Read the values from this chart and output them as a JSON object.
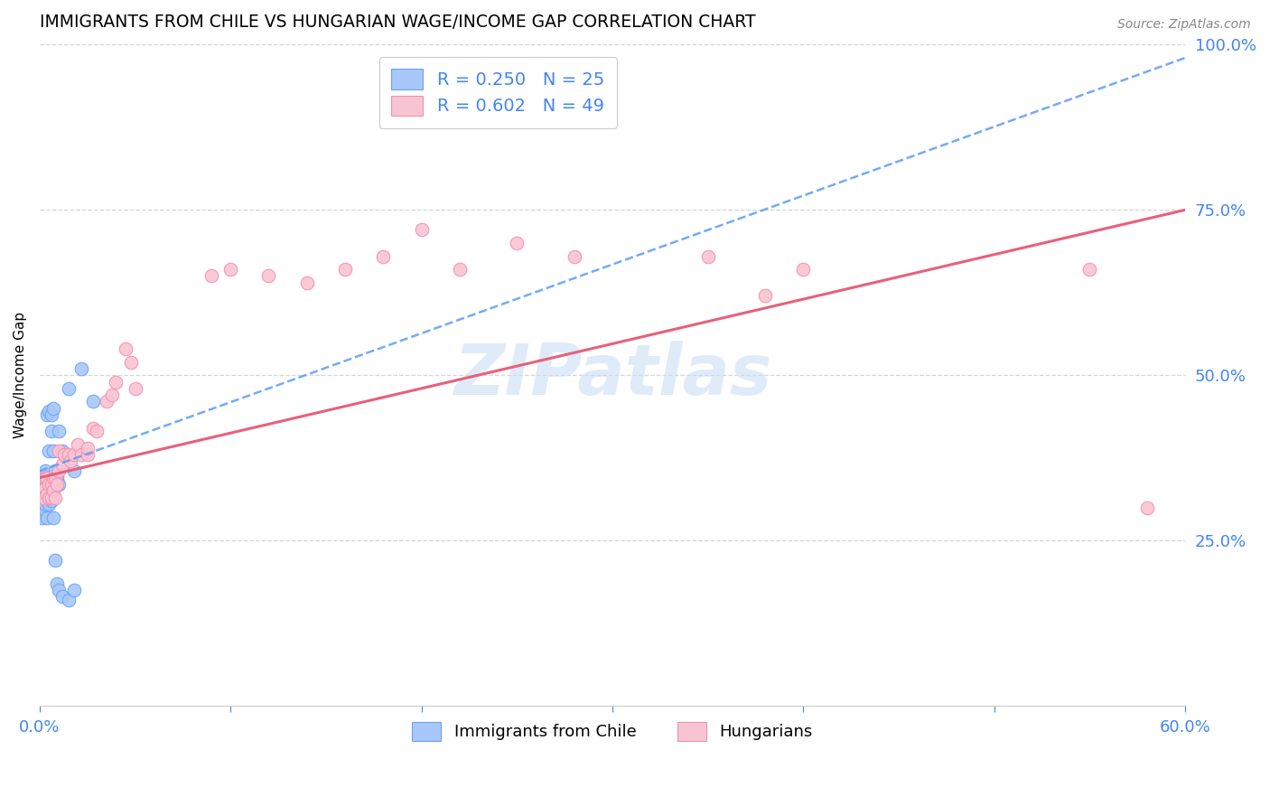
{
  "title": "IMMIGRANTS FROM CHILE VS HUNGARIAN WAGE/INCOME GAP CORRELATION CHART",
  "source": "Source: ZipAtlas.com",
  "ylabel": "Wage/Income Gap",
  "xlim": [
    0.0,
    0.6
  ],
  "ylim": [
    0.0,
    1.0
  ],
  "ytick_right_labels": [
    "25.0%",
    "50.0%",
    "75.0%",
    "100.0%"
  ],
  "ytick_right_vals": [
    0.25,
    0.5,
    0.75,
    1.0
  ],
  "legend_r1": "R = 0.250   N = 25",
  "legend_r2": "R = 0.602   N = 49",
  "watermark": "ZIPatlas",
  "color_chile": "#a8c8fa",
  "color_chile_edge": "#6aa3f5",
  "color_chile_line": "#5b9cf6",
  "color_hungary": "#f9c4d2",
  "color_hungary_edge": "#f48fb1",
  "color_hungary_line": "#e8607a",
  "chile_x": [
    0.001,
    0.002,
    0.002,
    0.003,
    0.003,
    0.003,
    0.004,
    0.004,
    0.004,
    0.005,
    0.005,
    0.005,
    0.006,
    0.006,
    0.007,
    0.007,
    0.008,
    0.009,
    0.01,
    0.01,
    0.012,
    0.015,
    0.018,
    0.022,
    0.028
  ],
  "chile_y": [
    0.335,
    0.325,
    0.345,
    0.33,
    0.34,
    0.355,
    0.335,
    0.345,
    0.44,
    0.345,
    0.445,
    0.385,
    0.44,
    0.415,
    0.45,
    0.385,
    0.355,
    0.345,
    0.335,
    0.415,
    0.385,
    0.48,
    0.355,
    0.51,
    0.46
  ],
  "chile_low_x": [
    0.001,
    0.002,
    0.002,
    0.003,
    0.003,
    0.004,
    0.004,
    0.005,
    0.006,
    0.007,
    0.008,
    0.009,
    0.01,
    0.012,
    0.015,
    0.018
  ],
  "chile_low_y": [
    0.285,
    0.305,
    0.315,
    0.295,
    0.305,
    0.31,
    0.285,
    0.305,
    0.31,
    0.285,
    0.22,
    0.185,
    0.175,
    0.165,
    0.16,
    0.175
  ],
  "hungary_x": [
    0.001,
    0.002,
    0.003,
    0.003,
    0.004,
    0.004,
    0.005,
    0.005,
    0.006,
    0.006,
    0.007,
    0.007,
    0.008,
    0.008,
    0.009,
    0.01,
    0.01,
    0.012,
    0.013,
    0.015,
    0.016,
    0.018,
    0.02,
    0.022,
    0.025,
    0.025,
    0.028,
    0.03,
    0.035,
    0.038,
    0.04,
    0.045,
    0.048,
    0.05,
    0.09,
    0.1,
    0.12,
    0.14,
    0.16,
    0.18,
    0.2,
    0.22,
    0.25,
    0.28,
    0.35,
    0.38,
    0.4,
    0.55,
    0.58
  ],
  "hungary_y": [
    0.325,
    0.315,
    0.33,
    0.345,
    0.32,
    0.345,
    0.315,
    0.335,
    0.315,
    0.335,
    0.325,
    0.345,
    0.315,
    0.345,
    0.335,
    0.355,
    0.385,
    0.365,
    0.38,
    0.38,
    0.37,
    0.38,
    0.395,
    0.38,
    0.38,
    0.39,
    0.42,
    0.415,
    0.46,
    0.47,
    0.49,
    0.54,
    0.52,
    0.48,
    0.65,
    0.66,
    0.65,
    0.64,
    0.66,
    0.68,
    0.72,
    0.66,
    0.7,
    0.68,
    0.68,
    0.62,
    0.66,
    0.66,
    0.3
  ],
  "chile_line_x0": 0.0,
  "chile_line_x1": 0.6,
  "chile_line_y0": 0.355,
  "chile_line_y1": 0.98,
  "hungary_line_x0": 0.0,
  "hungary_line_x1": 0.6,
  "hungary_line_y0": 0.345,
  "hungary_line_y1": 0.75
}
